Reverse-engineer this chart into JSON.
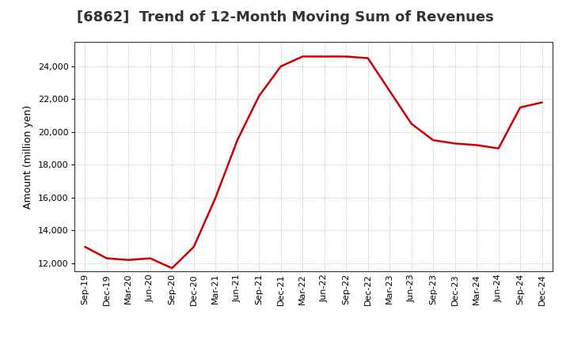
{
  "title": "[6862]  Trend of 12-Month Moving Sum of Revenues",
  "ylabel": "Amount (million yen)",
  "line_color": "#cc0000",
  "background_color": "#ffffff",
  "plot_bg_color": "#ffffff",
  "grid_color": "#999999",
  "x_labels": [
    "Sep-19",
    "Dec-19",
    "Mar-20",
    "Jun-20",
    "Sep-20",
    "Dec-20",
    "Mar-21",
    "Jun-21",
    "Sep-21",
    "Dec-21",
    "Mar-22",
    "Jun-22",
    "Sep-22",
    "Dec-22",
    "Mar-23",
    "Jun-23",
    "Sep-23",
    "Dec-23",
    "Mar-24",
    "Jun-24",
    "Sep-24",
    "Dec-24"
  ],
  "values": [
    13000,
    12300,
    12200,
    12300,
    11700,
    13000,
    16000,
    19500,
    22200,
    24000,
    24600,
    24600,
    24600,
    24500,
    22500,
    20500,
    19500,
    19300,
    19200,
    19000,
    21500,
    21800
  ],
  "ylim": [
    11500,
    25500
  ],
  "yticks": [
    12000,
    14000,
    16000,
    18000,
    20000,
    22000,
    24000
  ],
  "title_fontsize": 13,
  "ylabel_fontsize": 9,
  "tick_fontsize": 8
}
